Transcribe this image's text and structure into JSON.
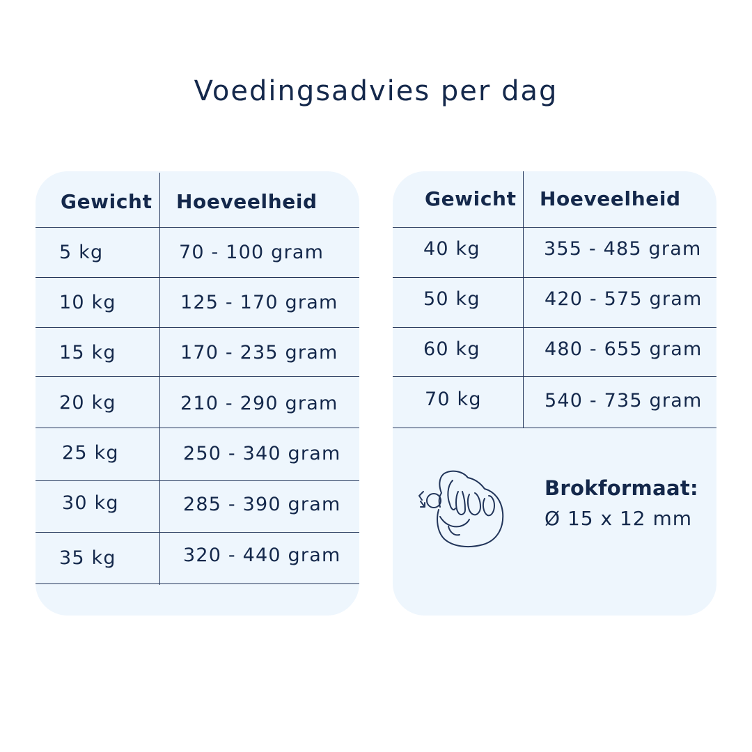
{
  "title": "Voedingsadvies per dag",
  "colors": {
    "text": "#14284b",
    "card_background": "#eef6fd",
    "lines": "#22355a",
    "page_background": "#ffffff"
  },
  "left_table": {
    "headers": {
      "weight": "Gewicht",
      "amount": "Hoeveelheid"
    },
    "rows": [
      {
        "weight": "5 kg",
        "amount": "70 - 100 gram"
      },
      {
        "weight": "10 kg",
        "amount": "125 - 170 gram"
      },
      {
        "weight": "15 kg",
        "amount": "170 - 235 gram"
      },
      {
        "weight": "20 kg",
        "amount": "210 - 290 gram"
      },
      {
        "weight": "25 kg",
        "amount": "250 - 340 gram"
      },
      {
        "weight": "30 kg",
        "amount": "285 - 390 gram"
      },
      {
        "weight": "35 kg",
        "amount": "320 - 440 gram"
      }
    ]
  },
  "right_table": {
    "headers": {
      "weight": "Gewicht",
      "amount": "Hoeveelheid"
    },
    "rows": [
      {
        "weight": "40 kg",
        "amount": "355 - 485 gram"
      },
      {
        "weight": "50 kg",
        "amount": "420 - 575 gram"
      },
      {
        "weight": "60 kg",
        "amount": "480 - 655 gram"
      },
      {
        "weight": "70 kg",
        "amount": "540 - 735 gram"
      }
    ]
  },
  "kibble": {
    "icon": "hand-holding-kibble-icon",
    "label": "Brokformaat:",
    "value": "Ø 15 x 12 mm"
  }
}
